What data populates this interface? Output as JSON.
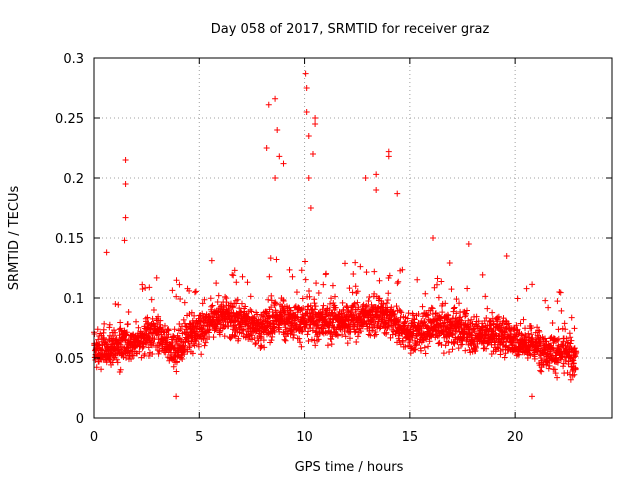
{
  "chart_data": {
    "type": "scatter",
    "title": "Day 058 of 2017, SRMTID for receiver graz",
    "xlabel": "GPS time / hours",
    "ylabel": "SRMTID / TECUs",
    "xlim": [
      0,
      24.6
    ],
    "ylim": [
      0,
      0.3
    ],
    "xticks": [
      0,
      5,
      10,
      15,
      20
    ],
    "xtick_labels": [
      "0",
      "5",
      "10",
      "15",
      "20"
    ],
    "yticks": [
      0,
      0.05,
      0.1,
      0.15,
      0.2,
      0.25,
      0.3
    ],
    "ytick_labels": [
      "0",
      "0.05",
      "0.1",
      "0.15",
      "0.2",
      "0.25",
      "0.3"
    ],
    "grid": true,
    "marker": "+",
    "color": "#ff0000",
    "x_range_of_data": [
      0,
      22.9
    ],
    "baseline_trend": [
      {
        "x": 0,
        "y": 0.055
      },
      {
        "x": 1,
        "y": 0.06
      },
      {
        "x": 2,
        "y": 0.065
      },
      {
        "x": 3,
        "y": 0.07
      },
      {
        "x": 4,
        "y": 0.055
      },
      {
        "x": 5,
        "y": 0.075
      },
      {
        "x": 6,
        "y": 0.085
      },
      {
        "x": 7,
        "y": 0.08
      },
      {
        "x": 8,
        "y": 0.075
      },
      {
        "x": 9,
        "y": 0.085
      },
      {
        "x": 10,
        "y": 0.08
      },
      {
        "x": 11,
        "y": 0.08
      },
      {
        "x": 12,
        "y": 0.08
      },
      {
        "x": 13,
        "y": 0.085
      },
      {
        "x": 14,
        "y": 0.085
      },
      {
        "x": 15,
        "y": 0.07
      },
      {
        "x": 16,
        "y": 0.075
      },
      {
        "x": 17,
        "y": 0.075
      },
      {
        "x": 18,
        "y": 0.07
      },
      {
        "x": 19,
        "y": 0.07
      },
      {
        "x": 20,
        "y": 0.065
      },
      {
        "x": 21,
        "y": 0.06
      },
      {
        "x": 22,
        "y": 0.055
      },
      {
        "x": 22.9,
        "y": 0.05
      }
    ],
    "notable_peaks": [
      {
        "x": 1.5,
        "y": 0.215
      },
      {
        "x": 1.5,
        "y": 0.195
      },
      {
        "x": 1.5,
        "y": 0.167
      },
      {
        "x": 1.45,
        "y": 0.148
      },
      {
        "x": 0.6,
        "y": 0.138
      },
      {
        "x": 8.2,
        "y": 0.225
      },
      {
        "x": 8.3,
        "y": 0.261
      },
      {
        "x": 8.6,
        "y": 0.266
      },
      {
        "x": 8.7,
        "y": 0.24
      },
      {
        "x": 8.6,
        "y": 0.2
      },
      {
        "x": 8.8,
        "y": 0.218
      },
      {
        "x": 9.0,
        "y": 0.212
      },
      {
        "x": 10.05,
        "y": 0.287
      },
      {
        "x": 10.1,
        "y": 0.275
      },
      {
        "x": 10.1,
        "y": 0.255
      },
      {
        "x": 10.2,
        "y": 0.235
      },
      {
        "x": 10.5,
        "y": 0.25
      },
      {
        "x": 10.5,
        "y": 0.245
      },
      {
        "x": 10.4,
        "y": 0.22
      },
      {
        "x": 10.2,
        "y": 0.2
      },
      {
        "x": 10.3,
        "y": 0.175
      },
      {
        "x": 12.9,
        "y": 0.2
      },
      {
        "x": 13.4,
        "y": 0.203
      },
      {
        "x": 13.4,
        "y": 0.19
      },
      {
        "x": 14.0,
        "y": 0.222
      },
      {
        "x": 14.0,
        "y": 0.218
      },
      {
        "x": 14.4,
        "y": 0.187
      },
      {
        "x": 16.1,
        "y": 0.15
      },
      {
        "x": 17.8,
        "y": 0.145
      },
      {
        "x": 19.6,
        "y": 0.135
      },
      {
        "x": 22.1,
        "y": 0.105
      },
      {
        "x": 20.8,
        "y": 0.018
      },
      {
        "x": 3.9,
        "y": 0.018
      }
    ]
  }
}
